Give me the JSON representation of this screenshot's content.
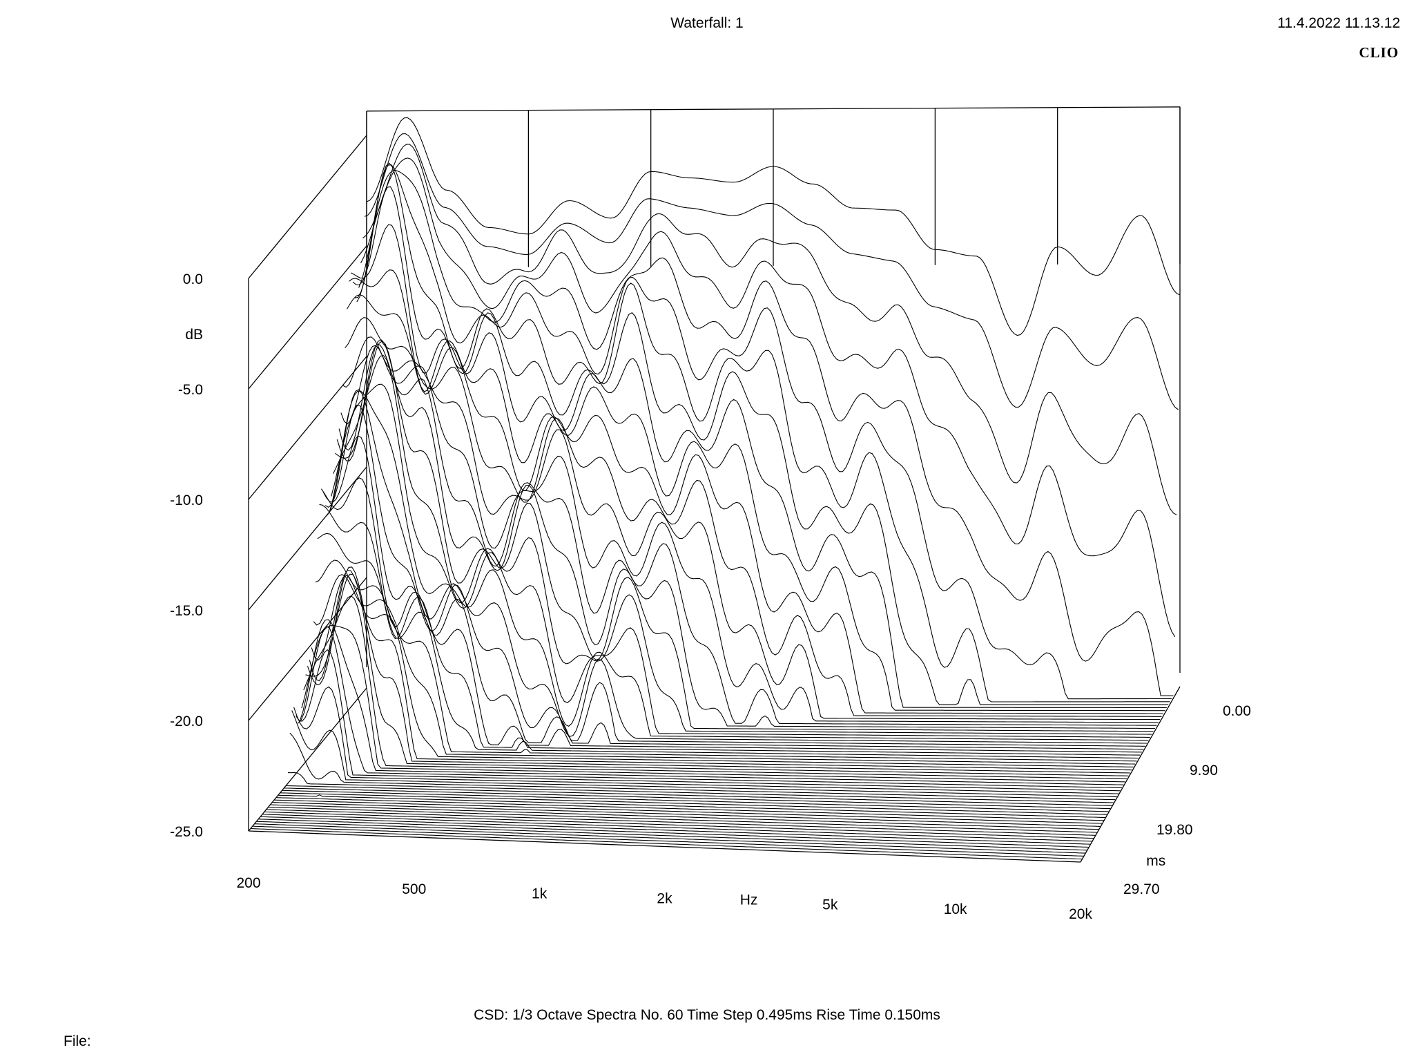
{
  "header": {
    "title": "Waterfall: 1",
    "timestamp": "11.4.2022 11.13.12",
    "brand": "CLIO"
  },
  "footer": {
    "info": "CSD:   1/3 Octave   Spectra No. 60   Time Step 0.495ms   Rise Time 0.150ms",
    "file_label": "File:"
  },
  "chart_data": {
    "type": "waterfall",
    "title": "Waterfall: 1",
    "method": "CSD",
    "smoothing": "1/3 Octave",
    "spectra_count": 60,
    "time_step_ms": 0.495,
    "rise_time_ms": 0.15,
    "x_axis": {
      "label": "Hz",
      "scale": "log",
      "range": [
        200,
        20000
      ],
      "ticks": [
        {
          "value": 200,
          "label": "200"
        },
        {
          "value": 500,
          "label": "500"
        },
        {
          "value": 1000,
          "label": "1k"
        },
        {
          "value": 2000,
          "label": "2k"
        },
        {
          "value": 5000,
          "label": "5k"
        },
        {
          "value": 10000,
          "label": "10k"
        },
        {
          "value": 20000,
          "label": "20k"
        }
      ]
    },
    "y_axis": {
      "label": "dB",
      "range": [
        -25,
        0
      ],
      "ticks": [
        {
          "value": 0,
          "label": "0.0"
        },
        {
          "value": -5,
          "label": "-5.0"
        },
        {
          "value": -10,
          "label": "-10.0"
        },
        {
          "value": -15,
          "label": "-15.0"
        },
        {
          "value": -20,
          "label": "-20.0"
        },
        {
          "value": -25,
          "label": "-25.0"
        }
      ]
    },
    "z_axis": {
      "label": "ms",
      "range": [
        0,
        29.7
      ],
      "ticks": [
        {
          "value": 0,
          "label": "0.00"
        },
        {
          "value": 9.9,
          "label": "9.90"
        },
        {
          "value": 19.8,
          "label": "19.80"
        },
        {
          "value": 29.7,
          "label": "29.70"
        }
      ]
    },
    "first_spectrum": {
      "freq_hz": [
        200,
        250,
        315,
        400,
        500,
        630,
        800,
        1000,
        1250,
        1600,
        2000,
        2500,
        3150,
        4000,
        5000,
        6300,
        8000,
        10000,
        12500,
        16000,
        20000
      ],
      "level_db": [
        -3.0,
        0.8,
        -2.5,
        -4.2,
        -4.5,
        -3.0,
        -3.8,
        -1.7,
        -2.0,
        -2.2,
        -1.5,
        -2.3,
        -3.4,
        -3.5,
        -5.3,
        -5.6,
        -9.2,
        -5.2,
        -6.5,
        -3.8,
        -7.4
      ]
    },
    "decay": {
      "spectra": 60,
      "end_time_ms": 29.7,
      "floor_db": -25
    }
  }
}
